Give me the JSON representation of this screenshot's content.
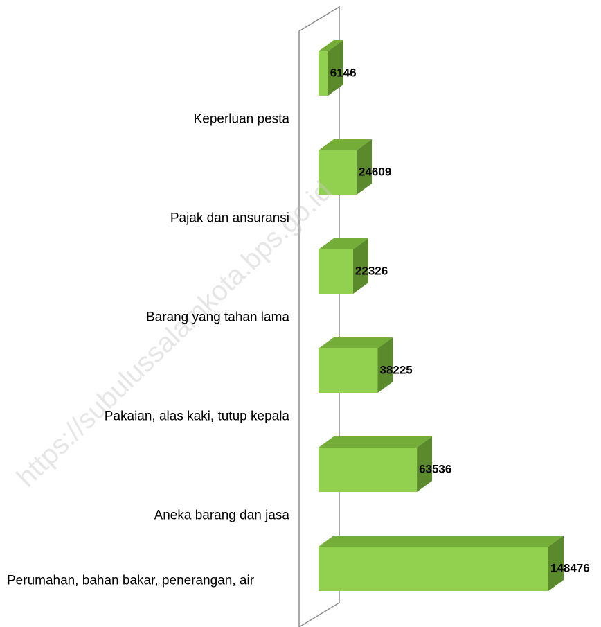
{
  "chart_data": {
    "type": "bar",
    "orientation": "horizontal",
    "categories": [
      "Perumahan, bahan bakar, penerangan, air",
      "Aneka barang dan jasa",
      "Pakaian, alas kaki, tutup kepala",
      "Barang yang tahan lama",
      "Pajak dan ansuransi",
      "Keperluan pesta"
    ],
    "values": [
      148476,
      63536,
      38225,
      22326,
      24609,
      6146
    ],
    "color": "#92d050"
  },
  "watermark": "https://subulussalamkota.bps.go.id"
}
